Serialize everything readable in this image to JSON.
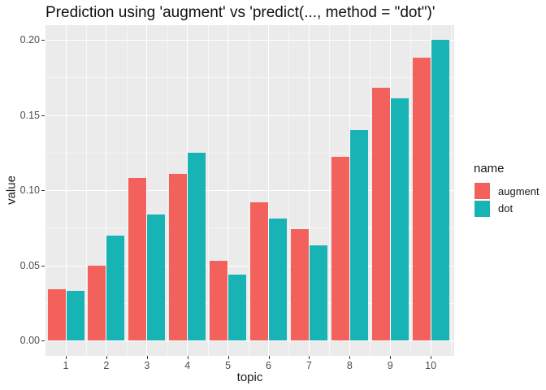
{
  "chart_data": {
    "type": "bar",
    "title": "Prediction using 'augment' vs 'predict(..., method = \"dot\")'",
    "xlabel": "topic",
    "ylabel": "value",
    "legend_title": "name",
    "legend_position": "right",
    "categories": [
      "1",
      "2",
      "3",
      "4",
      "5",
      "6",
      "7",
      "8",
      "9",
      "10"
    ],
    "series": [
      {
        "name": "augment",
        "color": "#F3615C",
        "values": [
          0.034,
          0.05,
          0.108,
          0.111,
          0.053,
          0.092,
          0.074,
          0.122,
          0.168,
          0.188
        ]
      },
      {
        "name": "dot",
        "color": "#17B3B5",
        "values": [
          0.033,
          0.07,
          0.084,
          0.125,
          0.044,
          0.081,
          0.063,
          0.14,
          0.161,
          0.2
        ]
      }
    ],
    "ylim": [
      0,
      0.21
    ],
    "yticks": [
      0,
      0.05,
      0.1,
      0.15,
      0.2
    ],
    "ytick_labels": [
      "0.00",
      "0.05",
      "0.10",
      "0.15",
      "0.20"
    ],
    "grid": true,
    "panel_bg": "#EBEBEB",
    "grid_major_color": "#FFFFFF",
    "grid_minor_color": "rgba(255,255,255,0.55)",
    "axis_text_color": "#4D4D4D",
    "tick_color": "#333333"
  }
}
